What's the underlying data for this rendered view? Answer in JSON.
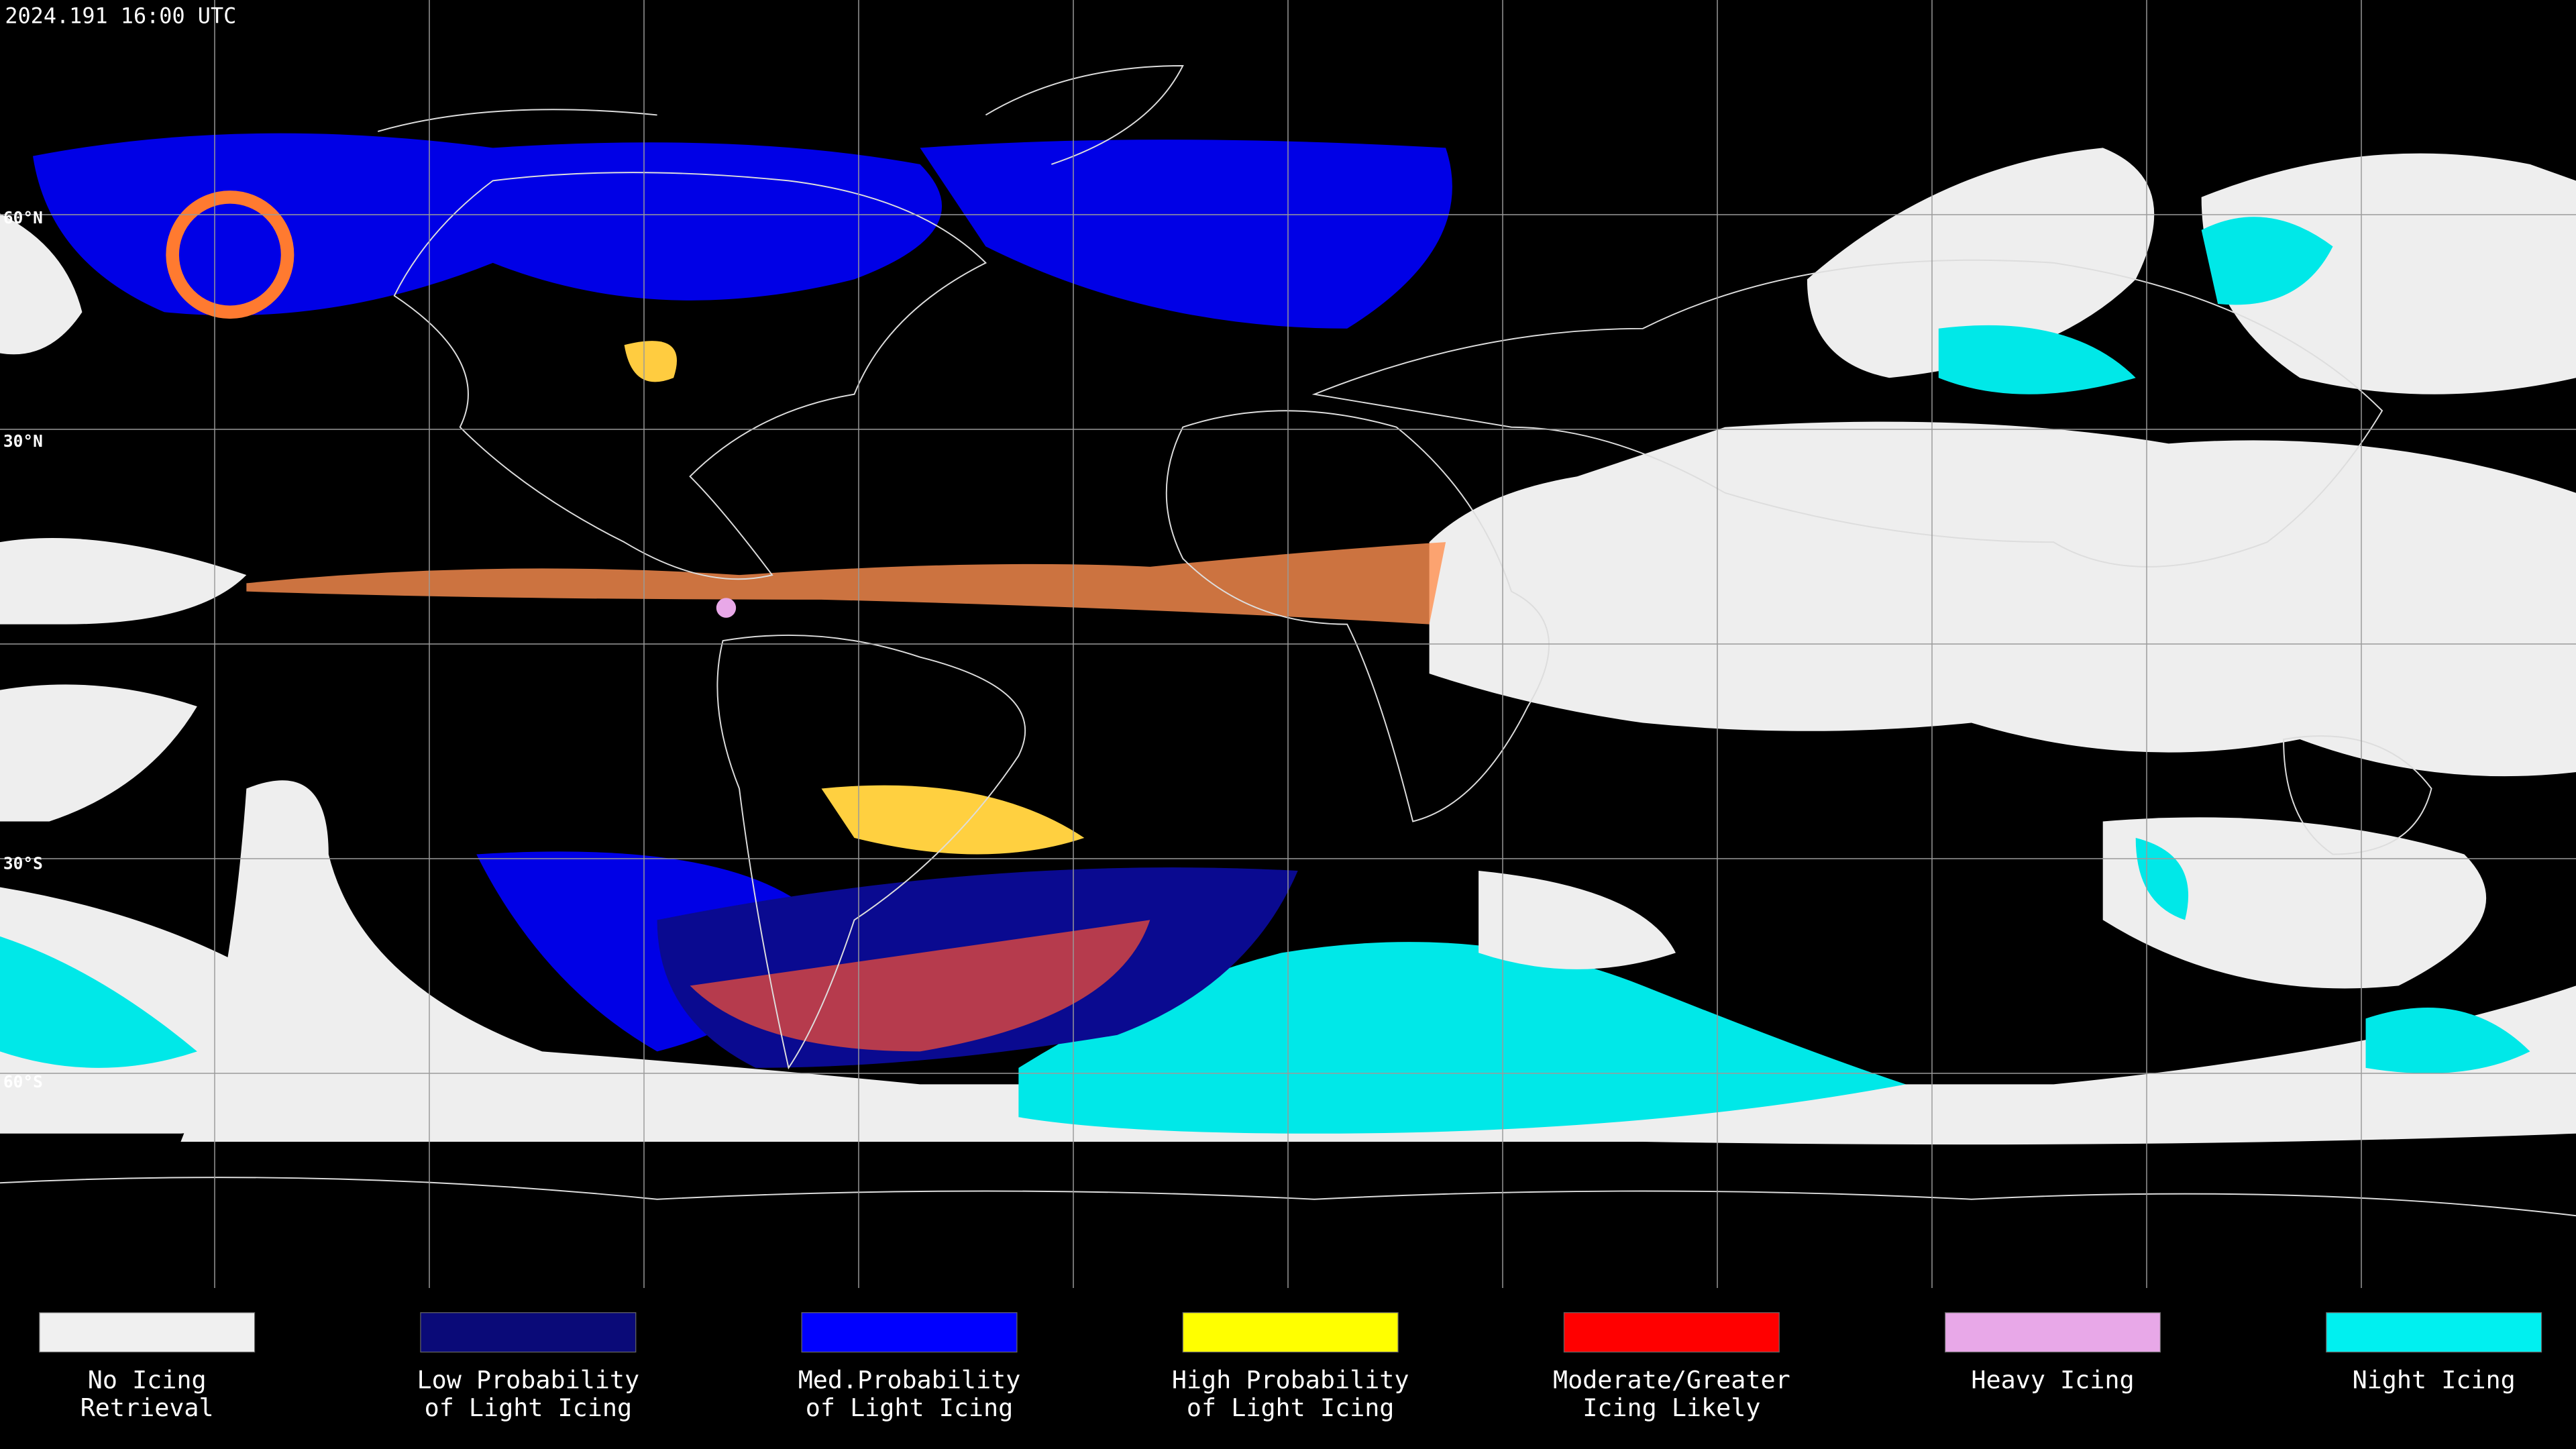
{
  "timestamp": "2024.191 16:00 UTC",
  "latitude_labels": [
    "60°N",
    "30°N",
    "30°S",
    "60°S"
  ],
  "legend": [
    {
      "label_lines": [
        "No Icing",
        "Retrieval"
      ],
      "color": "#f0f0f0"
    },
    {
      "label_lines": [
        "Low Probability",
        "of Light Icing"
      ],
      "color": "#0a0a78"
    },
    {
      "label_lines": [
        "Med.Probability",
        "of Light Icing"
      ],
      "color": "#0000ff"
    },
    {
      "label_lines": [
        "High Probability",
        "of Light Icing"
      ],
      "color": "#ffff00"
    },
    {
      "label_lines": [
        "Moderate/Greater",
        "Icing Likely"
      ],
      "color": "#ff0000"
    },
    {
      "label_lines": [
        "Heavy Icing"
      ],
      "color": "#e8a8e8"
    },
    {
      "label_lines": [
        "Night Icing"
      ],
      "color": "#00f0f0"
    }
  ]
}
